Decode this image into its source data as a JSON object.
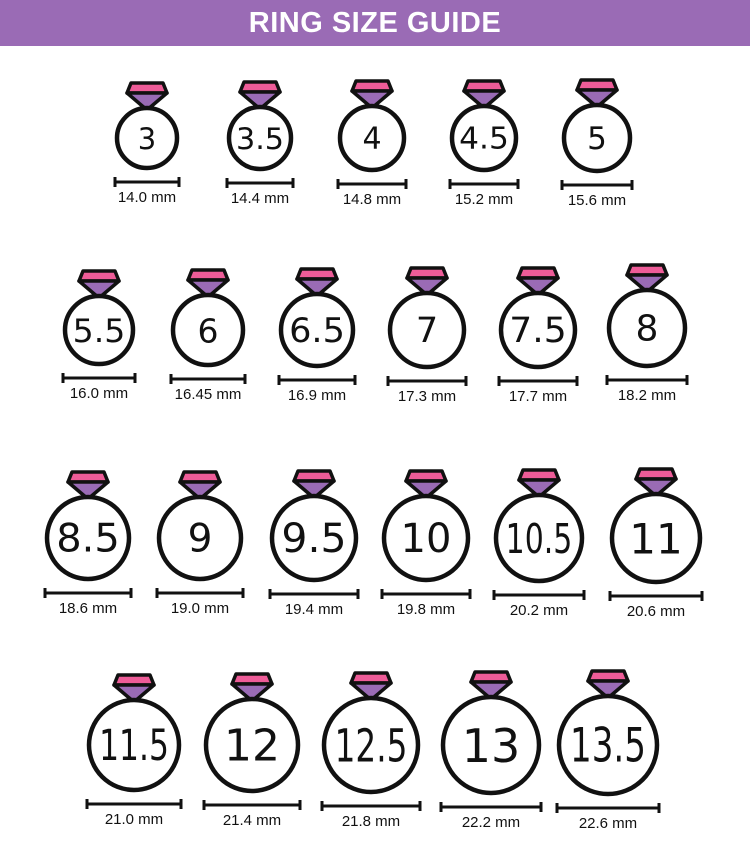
{
  "header": {
    "title": "RING SIZE GUIDE"
  },
  "colors": {
    "header_bg": "#9a6bb5",
    "gem_pink": "#ee5c98",
    "gem_purple": "#9a6bb5",
    "outline": "#111111"
  },
  "rings": [
    {
      "size": "3",
      "mm": "14.0 mm"
    },
    {
      "size": "3.5",
      "mm": "14.4 mm"
    },
    {
      "size": "4",
      "mm": "14.8 mm"
    },
    {
      "size": "4.5",
      "mm": "15.2 mm"
    },
    {
      "size": "5",
      "mm": "15.6 mm"
    },
    {
      "size": "5.5",
      "mm": "16.0 mm"
    },
    {
      "size": "6",
      "mm": "16.45 mm"
    },
    {
      "size": "6.5",
      "mm": "16.9 mm"
    },
    {
      "size": "7",
      "mm": "17.3 mm"
    },
    {
      "size": "7.5",
      "mm": "17.7 mm"
    },
    {
      "size": "8",
      "mm": "18.2 mm"
    },
    {
      "size": "8.5",
      "mm": "18.6 mm"
    },
    {
      "size": "9",
      "mm": "19.0 mm"
    },
    {
      "size": "9.5",
      "mm": "19.4 mm"
    },
    {
      "size": "10",
      "mm": "19.8 mm"
    },
    {
      "size": "10.5",
      "mm": "20.2 mm"
    },
    {
      "size": "11",
      "mm": "20.6 mm"
    },
    {
      "size": "11.5",
      "mm": "21.0 mm"
    },
    {
      "size": "12",
      "mm": "21.4 mm"
    },
    {
      "size": "12.5",
      "mm": "21.8 mm"
    },
    {
      "size": "13",
      "mm": "22.2 mm"
    },
    {
      "size": "13.5",
      "mm": "22.6 mm"
    }
  ]
}
